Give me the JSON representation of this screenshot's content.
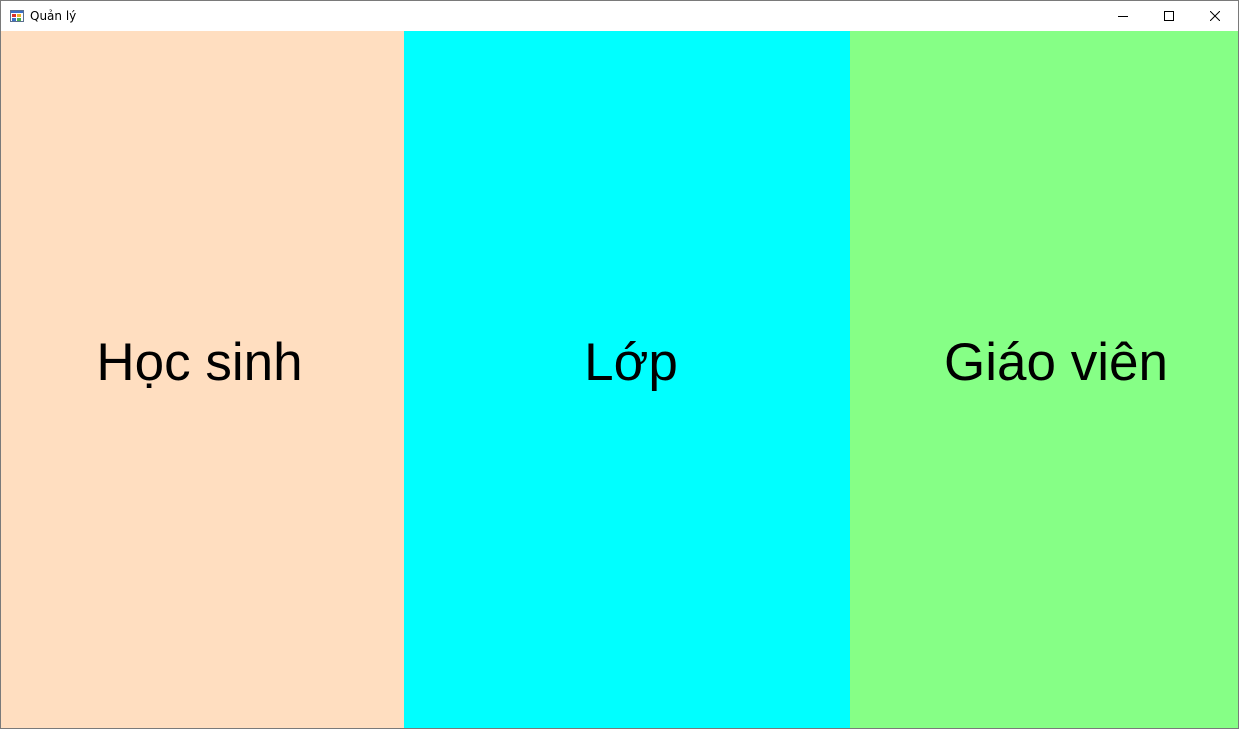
{
  "window": {
    "title": "Quản lý",
    "controls": {
      "minimize_icon": "minimize-icon",
      "maximize_icon": "maximize-icon",
      "close_icon": "close-icon"
    }
  },
  "panels": [
    {
      "label": "Học sinh",
      "color": "#FFDEC0"
    },
    {
      "label": "Lớp",
      "color": "#00FFFF"
    },
    {
      "label": "Giáo viên",
      "color": "#86FF86"
    }
  ]
}
